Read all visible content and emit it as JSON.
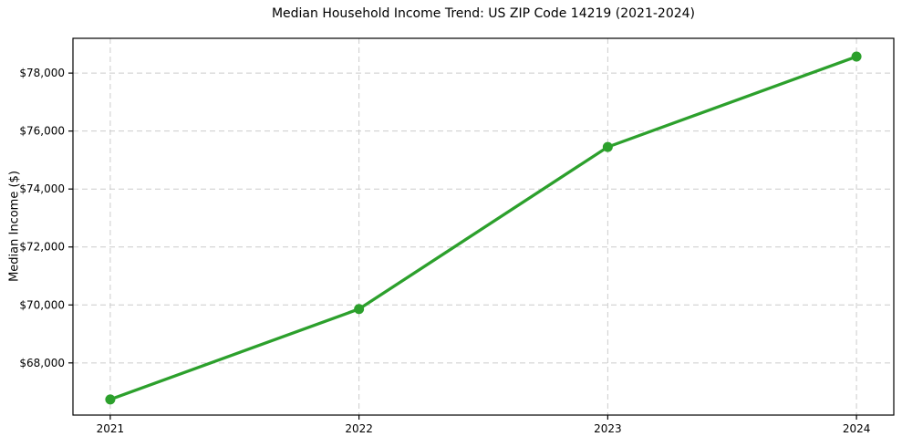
{
  "chart_data": {
    "type": "line",
    "title": "Median Household Income Trend: US ZIP Code 14219 (2021-2024)",
    "xlabel": "",
    "ylabel": "Median Income ($)",
    "categories": [
      "2021",
      "2022",
      "2023",
      "2024"
    ],
    "x": [
      0,
      1,
      2,
      3
    ],
    "values": [
      66740,
      69860,
      75450,
      78570
    ],
    "series_name": "Median household income",
    "line_color": "#2ca02c",
    "marker": "circle",
    "yticks": [
      68000,
      70000,
      72000,
      74000,
      76000,
      78000
    ],
    "ytick_labels": [
      "$68,000",
      "$70,000",
      "$72,000",
      "$74,000",
      "$76,000",
      "$78,000"
    ],
    "xtick_labels": [
      "2021",
      "2022",
      "2023",
      "2024"
    ],
    "xlim": [
      -0.15,
      3.15
    ],
    "ylim": [
      66200,
      79200
    ],
    "grid": "dashed",
    "grid_color": "#cccccc",
    "axis_color": "#000000",
    "background_color": "#ffffff",
    "legend": "none"
  }
}
